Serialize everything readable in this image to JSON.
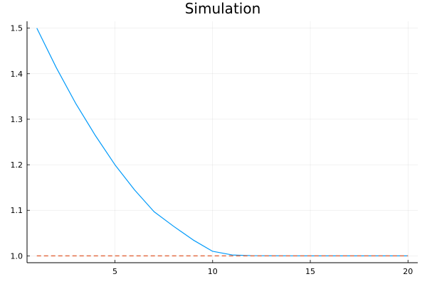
{
  "chart_data": {
    "type": "line",
    "title": "Simulation",
    "xlabel": "",
    "ylabel": "",
    "xlim": [
      0.5,
      20.5
    ],
    "ylim": [
      0.985,
      1.515
    ],
    "xticks": [
      5,
      10,
      15,
      20
    ],
    "yticks": [
      1.0,
      1.1,
      1.2,
      1.3,
      1.4,
      1.5
    ],
    "xtick_labels": [
      "5",
      "10",
      "15",
      "20"
    ],
    "ytick_labels": [
      "1.0",
      "1.1",
      "1.2",
      "1.3",
      "1.4",
      "1.5"
    ],
    "grid": true,
    "legend": "none",
    "series": [
      {
        "color": "#009AFA",
        "style": "solid",
        "x": [
          1,
          2,
          3,
          4,
          5,
          6,
          7,
          8,
          9,
          10,
          11,
          12,
          13,
          14,
          15,
          16,
          17,
          18,
          19,
          20
        ],
        "values": [
          1.5,
          1.413,
          1.334,
          1.264,
          1.2,
          1.145,
          1.097,
          1.065,
          1.035,
          1.01,
          1.002,
          1.0005,
          1.0002,
          1.0001,
          1.0,
          1.0,
          1.0,
          1.0,
          1.0,
          1.0
        ]
      },
      {
        "color": "#E36F47",
        "style": "dashed",
        "x": [
          1,
          2,
          3,
          4,
          5,
          6,
          7,
          8,
          9,
          10,
          11,
          12,
          13,
          14,
          15,
          16,
          17,
          18,
          19,
          20
        ],
        "values": [
          1.0,
          1.0,
          1.0,
          1.0,
          1.0,
          1.0,
          1.0,
          1.0,
          1.0,
          1.0,
          1.0,
          1.0,
          1.0,
          1.0,
          1.0,
          1.0,
          1.0,
          1.0,
          1.0,
          1.0
        ]
      }
    ]
  }
}
